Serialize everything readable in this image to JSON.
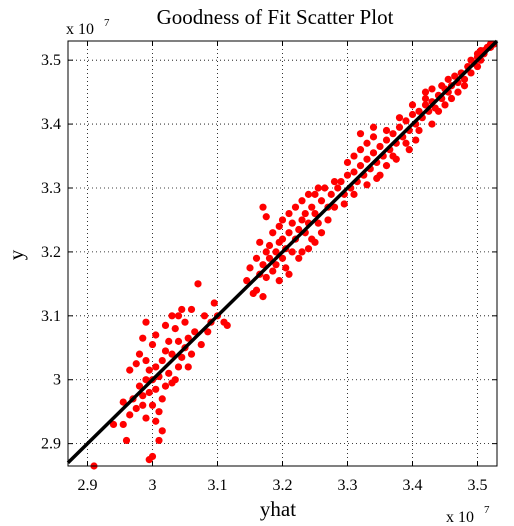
{
  "chart_data": {
    "type": "scatter",
    "title": "Goodness of Fit Scatter Plot",
    "xlabel": "yhat",
    "ylabel": "y",
    "xlim": [
      2.87,
      3.53
    ],
    "ylim": [
      2.865,
      3.53
    ],
    "x_ticks": [
      2.9,
      3.0,
      3.1,
      3.2,
      3.3,
      3.4,
      3.5
    ],
    "x_tick_labels": [
      "2.9",
      "3",
      "3.1",
      "3.2",
      "3.3",
      "3.4",
      "3.5"
    ],
    "y_ticks": [
      2.9,
      3.0,
      3.1,
      3.2,
      3.3,
      3.4,
      3.5
    ],
    "y_tick_labels": [
      "2.9",
      "3",
      "3.1",
      "3.2",
      "3.3",
      "3.4",
      "3.5"
    ],
    "x_multiplier": {
      "base": "x 10",
      "exp": "7"
    },
    "y_multiplier": {
      "base": "x 10",
      "exp": "7"
    },
    "grid": true,
    "point_color": "#ff0000",
    "line_color": "#000000",
    "fit_line": {
      "x": [
        2.87,
        3.53
      ],
      "y": [
        2.87,
        3.53
      ]
    },
    "series": [
      {
        "values_xy": [
          [
            2.91,
            2.865
          ],
          [
            2.955,
            2.93
          ],
          [
            2.96,
            2.905
          ],
          [
            2.965,
            2.945
          ],
          [
            2.97,
            2.97
          ],
          [
            2.975,
            2.955
          ],
          [
            2.98,
            2.99
          ],
          [
            2.985,
            2.975
          ],
          [
            2.99,
            2.94
          ],
          [
            2.99,
            3.0
          ],
          [
            2.995,
            2.98
          ],
          [
            2.995,
            3.015
          ],
          [
            3.0,
            2.88
          ],
          [
            2.995,
            2.875
          ],
          [
            3.0,
            2.96
          ],
          [
            3.0,
            3.0
          ],
          [
            3.005,
            2.985
          ],
          [
            3.005,
            3.02
          ],
          [
            3.01,
            2.95
          ],
          [
            3.01,
            3.005
          ],
          [
            3.01,
            2.905
          ],
          [
            3.015,
            2.97
          ],
          [
            3.015,
            3.03
          ],
          [
            3.02,
            2.99
          ],
          [
            3.02,
            3.045
          ],
          [
            3.025,
            3.01
          ],
          [
            3.025,
            3.06
          ],
          [
            3.03,
            2.995
          ],
          [
            3.03,
            3.04
          ],
          [
            3.035,
            3.08
          ],
          [
            3.04,
            3.02
          ],
          [
            3.04,
            3.06
          ],
          [
            3.045,
            3.035
          ],
          [
            3.05,
            3.09
          ],
          [
            3.05,
            3.05
          ],
          [
            3.055,
            3.065
          ],
          [
            3.06,
            3.04
          ],
          [
            3.065,
            3.075
          ],
          [
            3.07,
            3.15
          ],
          [
            3.075,
            3.055
          ],
          [
            3.08,
            3.1
          ],
          [
            3.085,
            3.075
          ],
          [
            3.09,
            3.09
          ],
          [
            3.095,
            3.12
          ],
          [
            3.1,
            3.1
          ],
          [
            2.98,
            3.04
          ],
          [
            2.985,
            3.065
          ],
          [
            2.99,
            3.09
          ],
          [
            2.975,
            3.025
          ],
          [
            2.965,
            3.015
          ],
          [
            3.005,
            3.07
          ],
          [
            3.02,
            3.085
          ],
          [
            3.03,
            3.1
          ],
          [
            3.04,
            3.1
          ],
          [
            3.045,
            3.11
          ],
          [
            3.0,
            3.055
          ],
          [
            2.99,
            3.03
          ],
          [
            3.015,
            2.92
          ],
          [
            3.005,
            2.935
          ],
          [
            2.985,
            2.96
          ],
          [
            3.06,
            3.11
          ],
          [
            3.11,
            3.09
          ],
          [
            3.115,
            3.085
          ],
          [
            3.055,
            3.02
          ],
          [
            3.035,
            3.0
          ],
          [
            2.955,
            2.965
          ],
          [
            2.94,
            2.93
          ],
          [
            3.145,
            3.155
          ],
          [
            3.15,
            3.175
          ],
          [
            3.155,
            3.135
          ],
          [
            3.16,
            3.14
          ],
          [
            3.165,
            3.165
          ],
          [
            3.17,
            3.18
          ],
          [
            3.17,
            3.13
          ],
          [
            3.175,
            3.2
          ],
          [
            3.175,
            3.16
          ],
          [
            3.18,
            3.19
          ],
          [
            3.18,
            3.21
          ],
          [
            3.185,
            3.17
          ],
          [
            3.185,
            3.23
          ],
          [
            3.19,
            3.2
          ],
          [
            3.19,
            3.18
          ],
          [
            3.195,
            3.215
          ],
          [
            3.195,
            3.24
          ],
          [
            3.2,
            3.19
          ],
          [
            3.2,
            3.22
          ],
          [
            3.2,
            3.25
          ],
          [
            3.205,
            3.205
          ],
          [
            3.205,
            3.175
          ],
          [
            3.21,
            3.23
          ],
          [
            3.21,
            3.26
          ],
          [
            3.215,
            3.2
          ],
          [
            3.215,
            3.245
          ],
          [
            3.22,
            3.22
          ],
          [
            3.22,
            3.27
          ],
          [
            3.225,
            3.235
          ],
          [
            3.225,
            3.19
          ],
          [
            3.23,
            3.25
          ],
          [
            3.23,
            3.28
          ],
          [
            3.235,
            3.23
          ],
          [
            3.235,
            3.26
          ],
          [
            3.24,
            3.245
          ],
          [
            3.24,
            3.29
          ],
          [
            3.245,
            3.27
          ],
          [
            3.245,
            3.22
          ],
          [
            3.25,
            3.26
          ],
          [
            3.25,
            3.29
          ],
          [
            3.255,
            3.245
          ],
          [
            3.26,
            3.28
          ],
          [
            3.26,
            3.23
          ],
          [
            3.265,
            3.3
          ],
          [
            3.27,
            3.27
          ],
          [
            3.27,
            3.25
          ],
          [
            3.275,
            3.29
          ],
          [
            3.28,
            3.31
          ],
          [
            3.28,
            3.27
          ],
          [
            3.285,
            3.3
          ],
          [
            3.17,
            3.27
          ],
          [
            3.175,
            3.255
          ],
          [
            3.165,
            3.215
          ],
          [
            3.16,
            3.19
          ],
          [
            3.24,
            3.205
          ],
          [
            3.25,
            3.215
          ],
          [
            3.23,
            3.2
          ],
          [
            3.21,
            3.165
          ],
          [
            3.195,
            3.155
          ],
          [
            3.255,
            3.3
          ],
          [
            3.29,
            3.31
          ],
          [
            3.295,
            3.29
          ],
          [
            3.3,
            3.32
          ],
          [
            3.3,
            3.34
          ],
          [
            3.305,
            3.3
          ],
          [
            3.31,
            3.325
          ],
          [
            3.31,
            3.35
          ],
          [
            3.315,
            3.31
          ],
          [
            3.32,
            3.335
          ],
          [
            3.32,
            3.36
          ],
          [
            3.325,
            3.32
          ],
          [
            3.33,
            3.345
          ],
          [
            3.33,
            3.37
          ],
          [
            3.335,
            3.33
          ],
          [
            3.34,
            3.355
          ],
          [
            3.34,
            3.38
          ],
          [
            3.345,
            3.34
          ],
          [
            3.35,
            3.365
          ],
          [
            3.35,
            3.32
          ],
          [
            3.355,
            3.35
          ],
          [
            3.36,
            3.375
          ],
          [
            3.36,
            3.39
          ],
          [
            3.365,
            3.36
          ],
          [
            3.37,
            3.385
          ],
          [
            3.37,
            3.35
          ],
          [
            3.375,
            3.37
          ],
          [
            3.38,
            3.395
          ],
          [
            3.38,
            3.41
          ],
          [
            3.385,
            3.38
          ],
          [
            3.39,
            3.405
          ],
          [
            3.39,
            3.37
          ],
          [
            3.395,
            3.39
          ],
          [
            3.4,
            3.415
          ],
          [
            3.4,
            3.43
          ],
          [
            3.405,
            3.4
          ],
          [
            3.41,
            3.42
          ],
          [
            3.41,
            3.39
          ],
          [
            3.415,
            3.41
          ],
          [
            3.42,
            3.43
          ],
          [
            3.42,
            3.44
          ],
          [
            3.425,
            3.42
          ],
          [
            3.43,
            3.435
          ],
          [
            3.43,
            3.4
          ],
          [
            3.435,
            3.425
          ],
          [
            3.44,
            3.445
          ],
          [
            3.44,
            3.42
          ],
          [
            3.445,
            3.44
          ],
          [
            3.45,
            3.455
          ],
          [
            3.45,
            3.43
          ],
          [
            3.455,
            3.45
          ],
          [
            3.295,
            3.275
          ],
          [
            3.31,
            3.29
          ],
          [
            3.33,
            3.305
          ],
          [
            3.345,
            3.315
          ],
          [
            3.36,
            3.335
          ],
          [
            3.375,
            3.345
          ],
          [
            3.395,
            3.36
          ],
          [
            3.405,
            3.375
          ],
          [
            3.32,
            3.385
          ],
          [
            3.34,
            3.395
          ],
          [
            3.46,
            3.46
          ],
          [
            3.465,
            3.475
          ],
          [
            3.47,
            3.465
          ],
          [
            3.475,
            3.48
          ],
          [
            3.48,
            3.47
          ],
          [
            3.485,
            3.49
          ],
          [
            3.49,
            3.48
          ],
          [
            3.495,
            3.495
          ],
          [
            3.5,
            3.49
          ],
          [
            3.5,
            3.505
          ],
          [
            3.505,
            3.5
          ],
          [
            3.51,
            3.51
          ],
          [
            3.51,
            3.515
          ],
          [
            3.515,
            3.52
          ],
          [
            3.52,
            3.52
          ],
          [
            3.52,
            3.525
          ],
          [
            3.525,
            3.525
          ],
          [
            3.46,
            3.44
          ],
          [
            3.47,
            3.45
          ],
          [
            3.48,
            3.46
          ],
          [
            3.445,
            3.46
          ],
          [
            3.455,
            3.47
          ],
          [
            3.49,
            3.5
          ],
          [
            3.5,
            3.51
          ],
          [
            3.505,
            3.515
          ],
          [
            3.43,
            3.455
          ],
          [
            3.42,
            3.45
          ]
        ]
      }
    ]
  }
}
